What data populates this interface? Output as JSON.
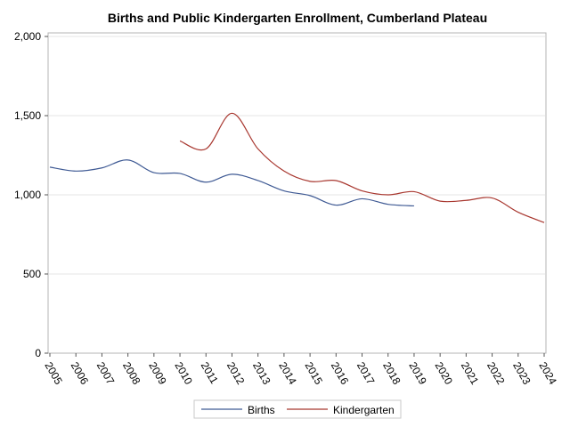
{
  "chart_data": {
    "type": "line",
    "title": "Births and Public Kindergarten Enrollment, Cumberland Plateau",
    "xlabel": "",
    "ylabel": "",
    "ylim": [
      0,
      2000
    ],
    "yticks": [
      0,
      500,
      1000,
      1500,
      2000
    ],
    "ytick_labels": [
      "0",
      "500",
      "1,000",
      "1,500",
      "2,000"
    ],
    "x": [
      2005,
      2006,
      2007,
      2008,
      2009,
      2010,
      2011,
      2012,
      2013,
      2014,
      2015,
      2016,
      2017,
      2018,
      2019,
      2020,
      2021,
      2022,
      2023,
      2024
    ],
    "xtick_labels": [
      "2005",
      "2006",
      "2007",
      "2008",
      "2009",
      "2010",
      "2011",
      "2012",
      "2013",
      "2014",
      "2015",
      "2016",
      "2017",
      "2018",
      "2019",
      "2020",
      "2021",
      "2022",
      "2023",
      "2024"
    ],
    "grid": "horizontal",
    "legend_position": "bottom",
    "series": [
      {
        "name": "Births",
        "color": "#3f5a94",
        "points": [
          [
            2005,
            1175
          ],
          [
            2006,
            1150
          ],
          [
            2007,
            1170
          ],
          [
            2008,
            1220
          ],
          [
            2009,
            1140
          ],
          [
            2010,
            1135
          ],
          [
            2011,
            1080
          ],
          [
            2012,
            1130
          ],
          [
            2013,
            1090
          ],
          [
            2014,
            1025
          ],
          [
            2015,
            995
          ],
          [
            2016,
            935
          ],
          [
            2017,
            975
          ],
          [
            2018,
            940
          ],
          [
            2019,
            930
          ]
        ]
      },
      {
        "name": "Kindergarten",
        "color": "#a8372f",
        "points": [
          [
            2010,
            1340
          ],
          [
            2011,
            1290
          ],
          [
            2012,
            1515
          ],
          [
            2013,
            1290
          ],
          [
            2014,
            1150
          ],
          [
            2015,
            1085
          ],
          [
            2016,
            1090
          ],
          [
            2017,
            1025
          ],
          [
            2018,
            1000
          ],
          [
            2019,
            1020
          ],
          [
            2020,
            960
          ],
          [
            2021,
            965
          ],
          [
            2022,
            980
          ],
          [
            2023,
            890
          ],
          [
            2024,
            825
          ]
        ]
      }
    ]
  }
}
